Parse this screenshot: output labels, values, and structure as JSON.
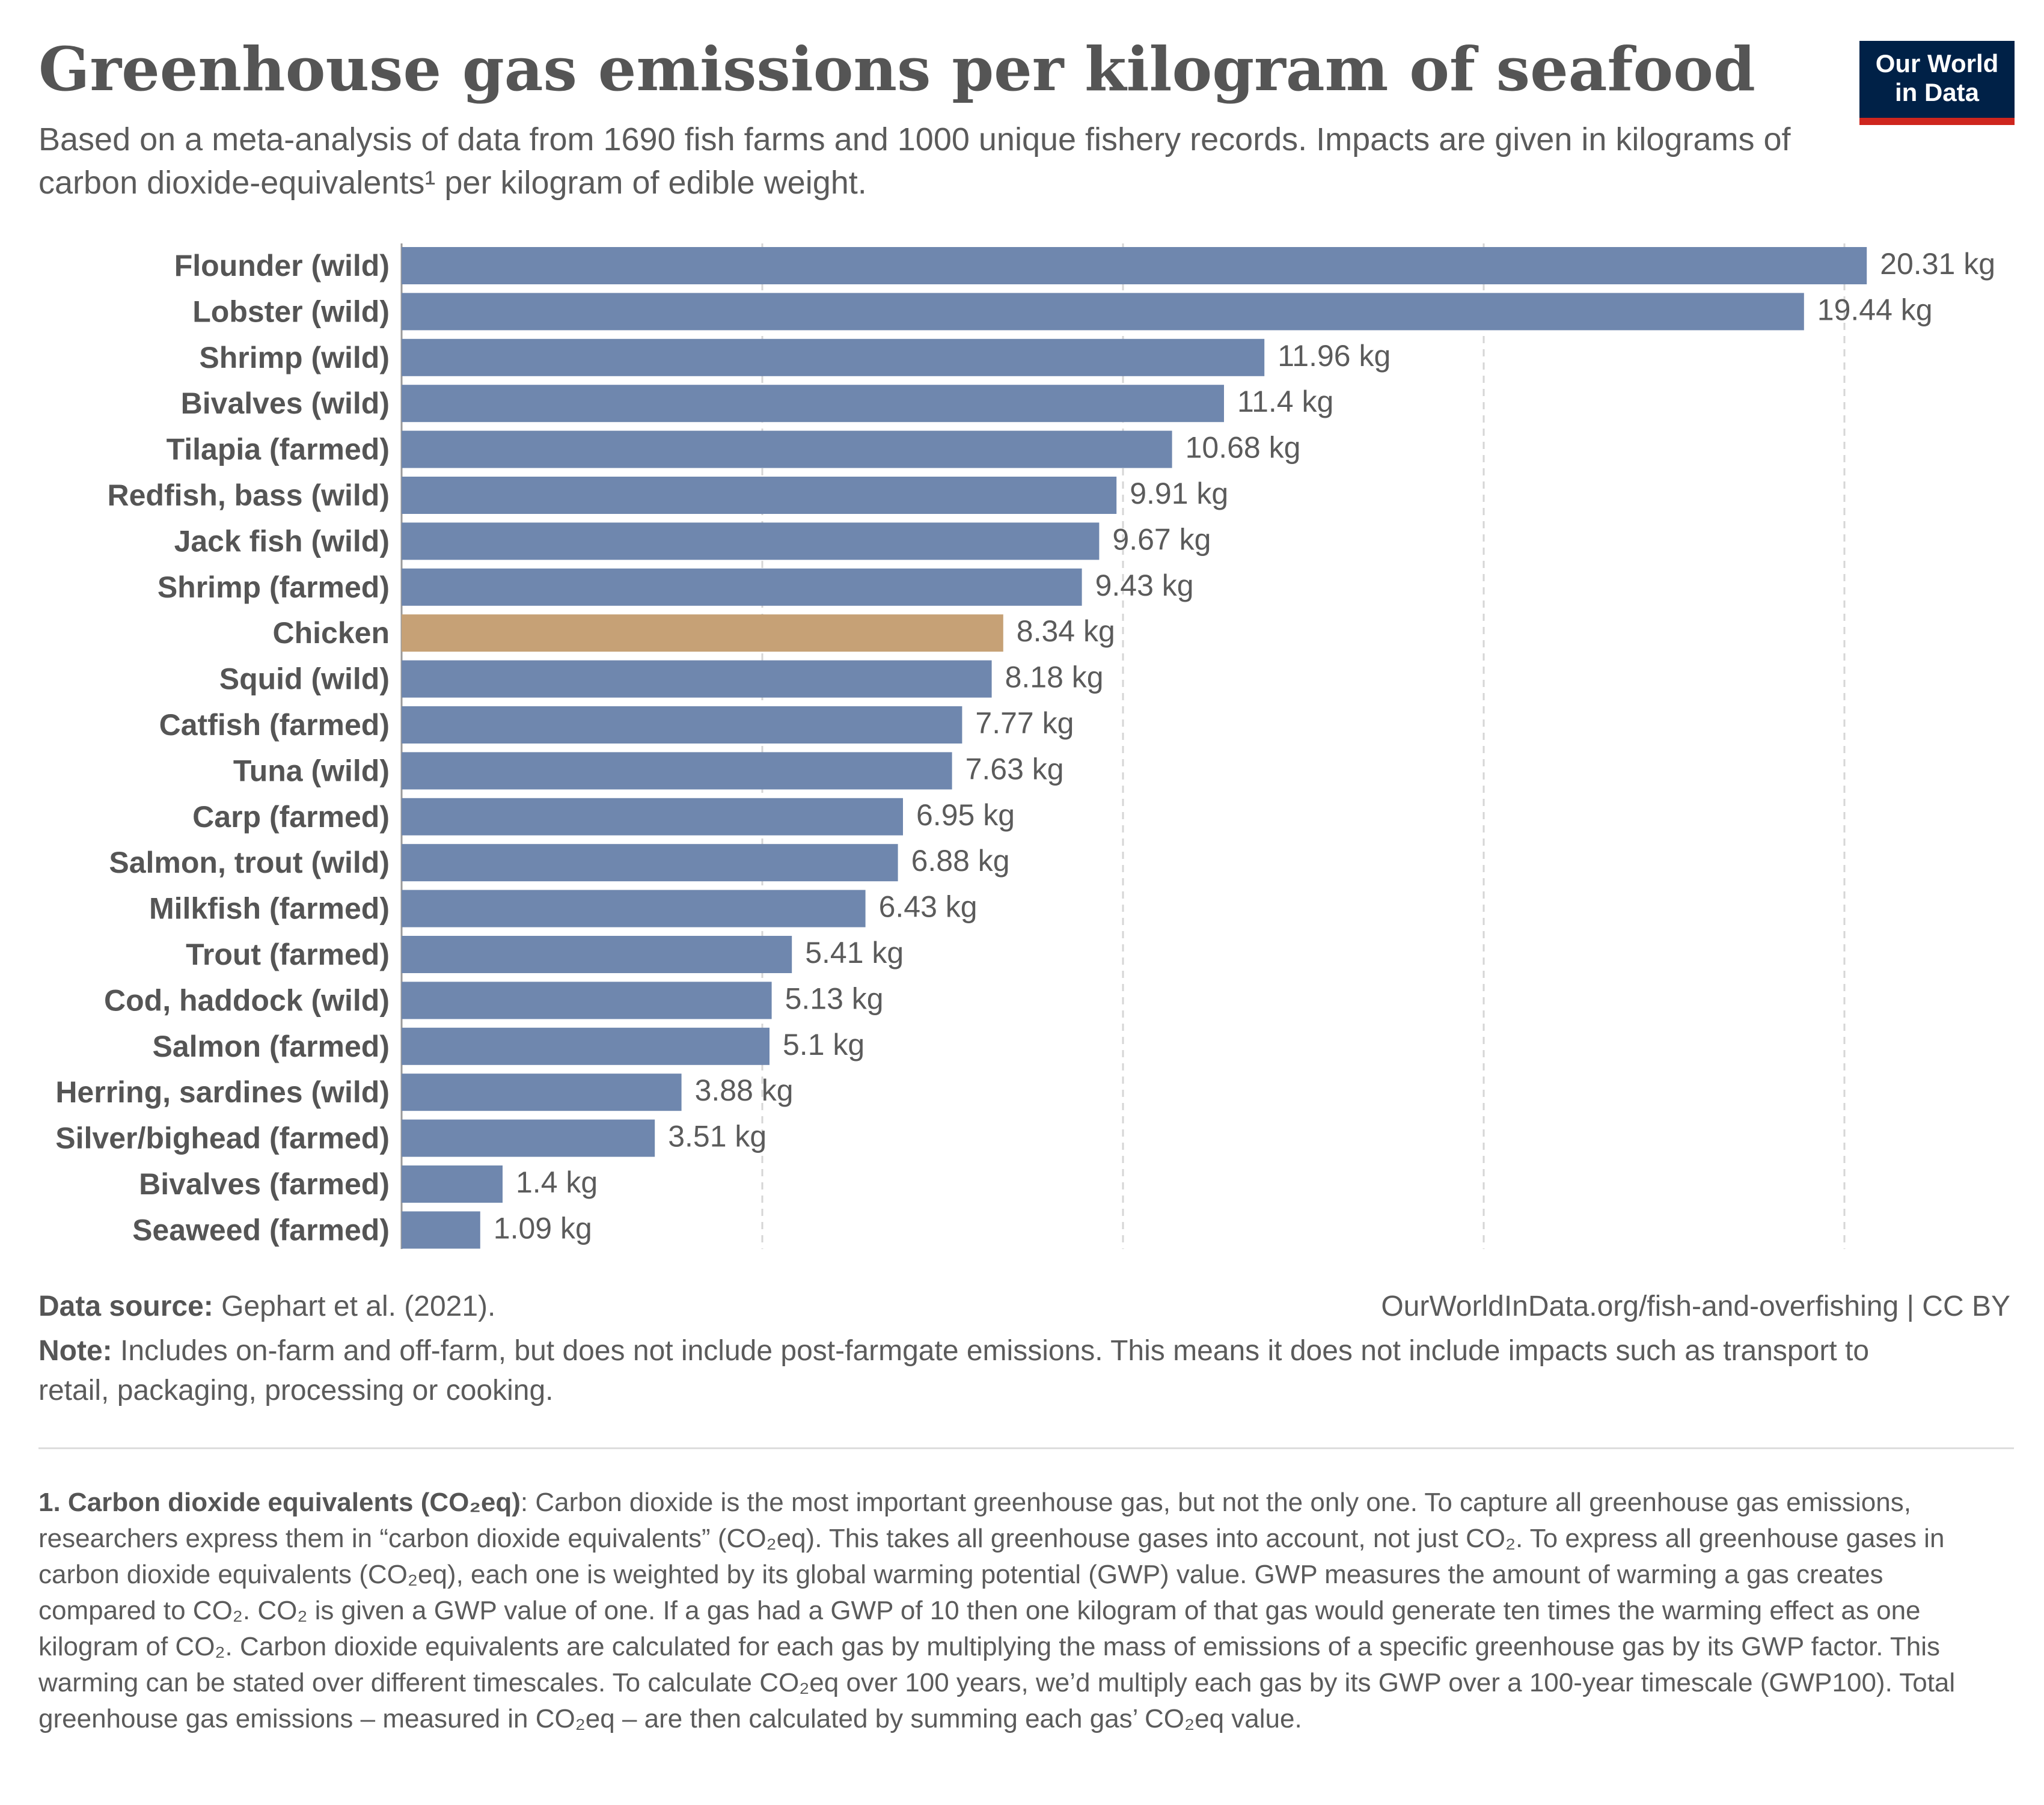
{
  "header": {
    "title": "Greenhouse gas emissions per kilogram of seafood",
    "subtitle": "Based on a meta-analysis of data from 1690 fish farms and 1000 unique fishery records. Impacts are given in kilograms of carbon dioxide-equivalents¹ per kilogram of edible weight."
  },
  "logo": {
    "line1": "Our World",
    "line2": "in Data"
  },
  "colors": {
    "bar": "#6f87ae",
    "highlight": "#c6a176",
    "label": "#555555",
    "value": "#5b5b5b",
    "grid": "#d6d6d6",
    "logo_bg": "#002147",
    "logo_accent": "#ce261e"
  },
  "chart_data": {
    "type": "bar",
    "orientation": "horizontal",
    "unit": "kg",
    "xlim": [
      0,
      20
    ],
    "grid": "vertical dashed",
    "highlight_category": "Chicken",
    "categories": [
      "Flounder (wild)",
      "Lobster (wild)",
      "Shrimp (wild)",
      "Bivalves (wild)",
      "Tilapia (farmed)",
      "Redfish, bass (wild)",
      "Jack fish (wild)",
      "Shrimp (farmed)",
      "Chicken",
      "Squid (wild)",
      "Catfish (farmed)",
      "Tuna (wild)",
      "Carp (farmed)",
      "Salmon, trout (wild)",
      "Milkfish (farmed)",
      "Trout (farmed)",
      "Cod, haddock (wild)",
      "Salmon (farmed)",
      "Herring, sardines (wild)",
      "Silver/bighead (farmed)",
      "Bivalves (farmed)",
      "Seaweed (farmed)"
    ],
    "values": [
      20.31,
      19.44,
      11.96,
      11.4,
      10.68,
      9.91,
      9.67,
      9.43,
      8.34,
      8.18,
      7.77,
      7.63,
      6.95,
      6.88,
      6.43,
      5.41,
      5.13,
      5.1,
      3.88,
      3.51,
      1.4,
      1.09
    ],
    "value_labels": [
      "20.31 kg",
      "19.44 kg",
      "11.96 kg",
      "11.4 kg",
      "10.68 kg",
      "9.91 kg",
      "9.67 kg",
      "9.43 kg",
      "8.34 kg",
      "8.18 kg",
      "7.77 kg",
      "7.63 kg",
      "6.95 kg",
      "6.88 kg",
      "6.43 kg",
      "5.41 kg",
      "5.13 kg",
      "5.1 kg",
      "3.88 kg",
      "3.51 kg",
      "1.4 kg",
      "1.09 kg"
    ]
  },
  "footer": {
    "source_label": "Data source:",
    "source_text": " Gephart et al. (2021).",
    "url": "OurWorldInData.org/fish-and-overfishing | CC BY",
    "note_label": "Note:",
    "note_text": " Includes on-farm and off-farm, but does not include post-farmgate emissions. This means it does not include impacts such as transport to retail, packaging, processing or cooking.",
    "footnote_label": "1. Carbon dioxide equivalents (CO₂eq)",
    "footnote_text": ": Carbon dioxide is the most important greenhouse gas, but not the only one. To capture all greenhouse gas emissions, researchers express them in “carbon dioxide equivalents” (CO₂eq). This takes all greenhouse gases into account, not just CO₂. To express all greenhouse gases in carbon dioxide equivalents (CO₂eq), each one is weighted by its global warming potential (GWP) value. GWP measures the amount of warming a gas creates compared to CO₂. CO₂ is given a GWP value of one. If a gas had a GWP of 10 then one kilogram of that gas would generate ten times the warming effect as one kilogram of CO₂. Carbon dioxide equivalents are calculated for each gas by multiplying the mass of emissions of a specific greenhouse gas by its GWP factor. This warming can be stated over different timescales. To calculate CO₂eq over 100 years, we’d multiply each gas by its GWP over a 100-year timescale (GWP100). Total greenhouse gas emissions – measured in CO₂eq – are then calculated by summing each gas’ CO₂eq value."
  }
}
